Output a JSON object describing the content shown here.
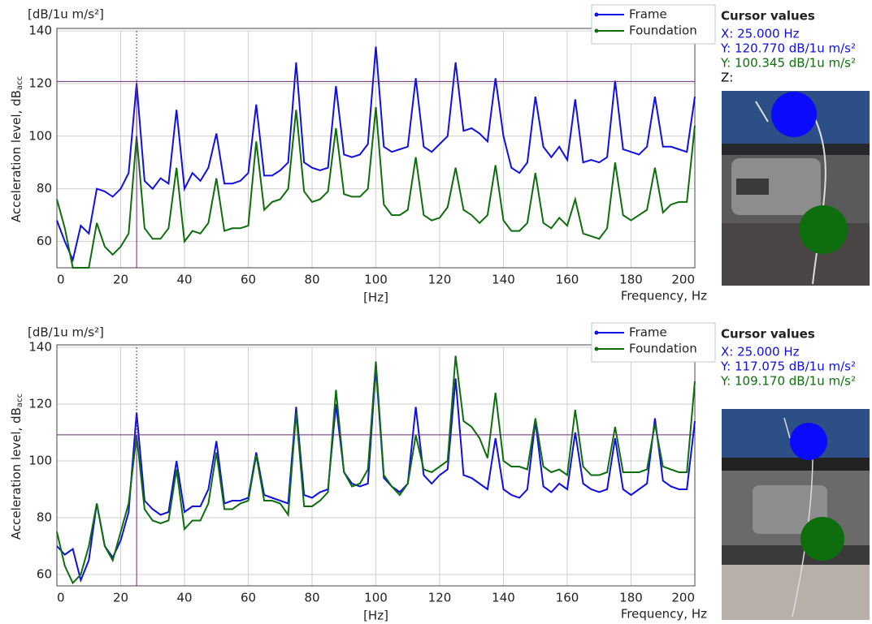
{
  "chart_data": [
    {
      "type": "line",
      "unit_label": "[dB/1u m/s²]",
      "y_label": "Acceleration level,  dB",
      "y_label_sub": "acc",
      "x_unit": "[Hz]",
      "x_label": "Frequency,  Hz",
      "x": [
        0,
        2.5,
        5,
        7.5,
        10,
        12.5,
        15,
        17.5,
        20,
        22.5,
        25,
        27.5,
        30,
        32.5,
        35,
        37.5,
        40,
        42.5,
        45,
        47.5,
        50,
        52.5,
        55,
        57.5,
        60,
        62.5,
        65,
        67.5,
        70,
        72.5,
        75,
        77.5,
        80,
        82.5,
        85,
        87.5,
        90,
        92.5,
        95,
        97.5,
        100,
        102.5,
        105,
        107.5,
        110,
        112.5,
        115,
        117.5,
        120,
        122.5,
        125,
        127.5,
        130,
        132.5,
        135,
        137.5,
        140,
        142.5,
        145,
        147.5,
        150,
        152.5,
        155,
        157.5,
        160,
        162.5,
        165,
        167.5,
        170,
        172.5,
        175,
        177.5,
        180,
        182.5,
        185,
        187.5,
        190,
        192.5,
        195,
        197.5,
        200
      ],
      "xlim": [
        0,
        200
      ],
      "xticks": [
        0,
        20,
        40,
        60,
        80,
        100,
        120,
        140,
        160,
        180,
        200
      ],
      "ylim": [
        50,
        140
      ],
      "yticks": [
        60,
        80,
        100,
        120,
        140
      ],
      "grid": true,
      "legend": "top-right",
      "series": [
        {
          "name": "Frame",
          "color": "#1010e0",
          "values": [
            68,
            60,
            53,
            66,
            63,
            80,
            79,
            77,
            80,
            86,
            120,
            83,
            80,
            84,
            82,
            110,
            80,
            86,
            83,
            88,
            101,
            82,
            82,
            83,
            86,
            112,
            85,
            85,
            87,
            90,
            128,
            90,
            88,
            87,
            88,
            119,
            93,
            92,
            93,
            97,
            134,
            96,
            94,
            95,
            96,
            122,
            96,
            94,
            97,
            100,
            128,
            102,
            103,
            101,
            98,
            122,
            100,
            88,
            86,
            90,
            115,
            96,
            92,
            96,
            91,
            114,
            90,
            91,
            90,
            92,
            121,
            95,
            94,
            93,
            96,
            115,
            96,
            96,
            95,
            94,
            115
          ]
        },
        {
          "name": "Foundation",
          "color": "#0e6e0e",
          "values": [
            76,
            65,
            50,
            50,
            50,
            67,
            58,
            55,
            58,
            63,
            100,
            65,
            61,
            61,
            65,
            88,
            60,
            64,
            63,
            67,
            84,
            64,
            65,
            65,
            66,
            98,
            72,
            75,
            76,
            80,
            110,
            79,
            75,
            76,
            79,
            103,
            78,
            77,
            77,
            80,
            111,
            74,
            70,
            70,
            72,
            92,
            70,
            68,
            69,
            73,
            88,
            72,
            70,
            67,
            70,
            89,
            68,
            64,
            64,
            67,
            86,
            67,
            65,
            69,
            66,
            76,
            63,
            62,
            61,
            65,
            90,
            70,
            68,
            70,
            72,
            88,
            71,
            74,
            75,
            75,
            104
          ]
        }
      ],
      "cursor": {
        "x": 25,
        "y": 120.77,
        "color": "#6a2a7a"
      },
      "cursor_panel": {
        "title": "Cursor values",
        "lines": [
          {
            "text": "X: 25.000 Hz",
            "color": "#1010e0"
          },
          {
            "text": "Y: 120.770 dB/1u m/s²",
            "color": "#1010e0"
          },
          {
            "text": "Y: 100.345 dB/1u m/s²",
            "color": "#0e6e0e"
          },
          {
            "text": "Z:",
            "color": "#000000"
          }
        ]
      }
    },
    {
      "type": "line",
      "unit_label": "[dB/1u m/s²]",
      "y_label": "Acceleration level,  dB",
      "y_label_sub": "acc",
      "x_unit": "[Hz]",
      "x_label": "Frequency,  Hz",
      "x": [
        0,
        2.5,
        5,
        7.5,
        10,
        12.5,
        15,
        17.5,
        20,
        22.5,
        25,
        27.5,
        30,
        32.5,
        35,
        37.5,
        40,
        42.5,
        45,
        47.5,
        50,
        52.5,
        55,
        57.5,
        60,
        62.5,
        65,
        67.5,
        70,
        72.5,
        75,
        77.5,
        80,
        82.5,
        85,
        87.5,
        90,
        92.5,
        95,
        97.5,
        100,
        102.5,
        105,
        107.5,
        110,
        112.5,
        115,
        117.5,
        120,
        122.5,
        125,
        127.5,
        130,
        132.5,
        135,
        137.5,
        140,
        142.5,
        145,
        147.5,
        150,
        152.5,
        155,
        157.5,
        160,
        162.5,
        165,
        167.5,
        170,
        172.5,
        175,
        177.5,
        180,
        182.5,
        185,
        187.5,
        190,
        192.5,
        195,
        197.5,
        200
      ],
      "xlim": [
        0,
        200
      ],
      "xticks": [
        0,
        20,
        40,
        60,
        80,
        100,
        120,
        140,
        160,
        180,
        200
      ],
      "ylim": [
        56,
        140
      ],
      "yticks": [
        60,
        80,
        100,
        120,
        140
      ],
      "grid": true,
      "legend": "top-right",
      "series": [
        {
          "name": "Frame",
          "color": "#1010e0",
          "values": [
            70,
            67,
            69,
            58,
            65,
            85,
            70,
            66,
            72,
            82,
            117,
            86,
            83,
            81,
            82,
            100,
            82,
            84,
            84,
            90,
            107,
            85,
            86,
            86,
            87,
            103,
            88,
            87,
            86,
            85,
            119,
            88,
            87,
            89,
            90,
            120,
            96,
            92,
            91,
            92,
            133,
            94,
            91,
            89,
            92,
            119,
            95,
            92,
            95,
            97,
            129,
            95,
            94,
            92,
            90,
            108,
            90,
            88,
            87,
            90,
            114,
            91,
            89,
            92,
            90,
            110,
            92,
            90,
            89,
            90,
            108,
            90,
            88,
            90,
            92,
            115,
            93,
            91,
            90,
            90,
            114
          ]
        },
        {
          "name": "Foundation",
          "color": "#0e6e0e",
          "values": [
            75,
            63,
            57,
            60,
            70,
            85,
            70,
            65,
            75,
            85,
            109,
            83,
            79,
            78,
            79,
            97,
            76,
            79,
            79,
            85,
            103,
            83,
            83,
            85,
            86,
            102,
            86,
            86,
            85,
            81,
            117,
            84,
            84,
            86,
            89,
            125,
            96,
            91,
            92,
            97,
            135,
            95,
            91,
            88,
            92,
            109,
            97,
            96,
            98,
            100,
            137,
            114,
            112,
            108,
            101,
            124,
            100,
            98,
            98,
            97,
            115,
            98,
            96,
            97,
            95,
            118,
            98,
            95,
            95,
            96,
            112,
            96,
            96,
            96,
            97,
            113,
            98,
            97,
            96,
            96,
            128
          ]
        }
      ],
      "cursor": {
        "x": 25,
        "y": 109.17,
        "color": "#6a2a7a"
      },
      "cursor_panel": {
        "title": "Cursor values",
        "lines": [
          {
            "text": "X: 25.000 Hz",
            "color": "#1010e0"
          },
          {
            "text": "Y: 117.075 dB/1u m/s²",
            "color": "#1010e0"
          },
          {
            "text": "Y: 109.170 dB/1u m/s²",
            "color": "#0e6e0e"
          }
        ]
      }
    }
  ]
}
